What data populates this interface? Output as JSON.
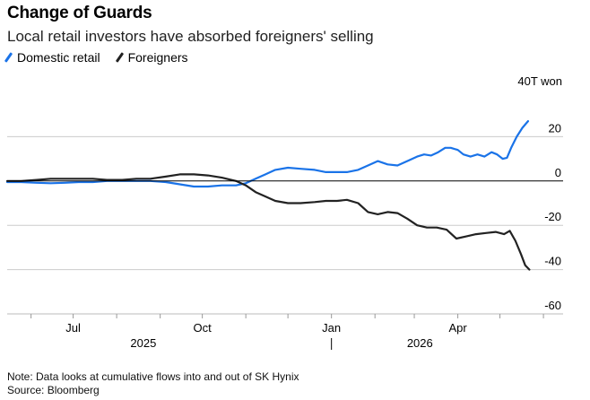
{
  "title": "Change of Guards",
  "subtitle": "Local retail investors have absorbed foreigners' selling",
  "unit": "40T won",
  "note": "Note: Data looks at cumulative flows into and out of SK Hynix",
  "source": "Source: Bloomberg",
  "colors": {
    "domestic": "#1a73e8",
    "foreigners": "#222222",
    "grid": "#cccccc",
    "axis": "#000000"
  },
  "chart_data": {
    "type": "line",
    "ylim": [
      -60,
      40
    ],
    "yticks": [
      {
        "value": 20,
        "label": "20"
      },
      {
        "value": 0,
        "label": "0"
      },
      {
        "value": -20,
        "label": "-20"
      },
      {
        "value": -40,
        "label": "-40"
      },
      {
        "value": -60,
        "label": "-60"
      }
    ],
    "xlim": [
      "2025-05-15",
      "2026-06-15"
    ],
    "month_ticks": [
      "2025-06-01",
      "2025-07-01",
      "2025-08-01",
      "2025-09-01",
      "2025-10-01",
      "2025-11-01",
      "2025-12-01",
      "2026-01-01",
      "2026-02-01",
      "2026-03-01",
      "2026-04-01",
      "2026-05-01",
      "2026-06-01"
    ],
    "xlabels": [
      {
        "date": "2025-07-01",
        "label": "Jul"
      },
      {
        "date": "2025-10-01",
        "label": "Oct"
      },
      {
        "date": "2026-01-01",
        "label": "Jan"
      },
      {
        "date": "2026-04-01",
        "label": "Apr"
      }
    ],
    "years": [
      {
        "date": "2025-08-20",
        "label": "2025"
      },
      {
        "date": "2026-03-05",
        "label": "2026"
      }
    ],
    "year_divider": "2026-01-01",
    "series": [
      {
        "name": "Domestic retail",
        "color": "#1a73e8",
        "points": [
          [
            "2025-05-15",
            -0.5
          ],
          [
            "2025-05-25",
            -0.5
          ],
          [
            "2025-06-05",
            -0.8
          ],
          [
            "2025-06-15",
            -1
          ],
          [
            "2025-06-25",
            -0.8
          ],
          [
            "2025-07-05",
            -0.5
          ],
          [
            "2025-07-15",
            -0.5
          ],
          [
            "2025-07-25",
            0
          ],
          [
            "2025-08-05",
            0
          ],
          [
            "2025-08-15",
            0
          ],
          [
            "2025-08-25",
            0
          ],
          [
            "2025-09-05",
            -0.5
          ],
          [
            "2025-09-15",
            -1.5
          ],
          [
            "2025-09-25",
            -2.5
          ],
          [
            "2025-10-05",
            -2.5
          ],
          [
            "2025-10-15",
            -2
          ],
          [
            "2025-10-25",
            -2
          ],
          [
            "2025-11-01",
            -1
          ],
          [
            "2025-11-08",
            1
          ],
          [
            "2025-11-15",
            3
          ],
          [
            "2025-11-22",
            5
          ],
          [
            "2025-12-01",
            6
          ],
          [
            "2025-12-10",
            5.5
          ],
          [
            "2025-12-20",
            5
          ],
          [
            "2025-12-28",
            4
          ],
          [
            "2026-01-05",
            4
          ],
          [
            "2026-01-12",
            4
          ],
          [
            "2026-01-20",
            5
          ],
          [
            "2026-01-27",
            7
          ],
          [
            "2026-02-03",
            9
          ],
          [
            "2026-02-10",
            7.5
          ],
          [
            "2026-02-17",
            7
          ],
          [
            "2026-02-24",
            9
          ],
          [
            "2026-03-03",
            11
          ],
          [
            "2026-03-08",
            12
          ],
          [
            "2026-03-13",
            11.5
          ],
          [
            "2026-03-18",
            13
          ],
          [
            "2026-03-23",
            15
          ],
          [
            "2026-03-27",
            15
          ],
          [
            "2026-04-01",
            14
          ],
          [
            "2026-04-05",
            12
          ],
          [
            "2026-04-10",
            11
          ],
          [
            "2026-04-15",
            12
          ],
          [
            "2026-04-20",
            11
          ],
          [
            "2026-04-25",
            13
          ],
          [
            "2026-04-29",
            12
          ],
          [
            "2026-05-03",
            10
          ],
          [
            "2026-05-06",
            10.5
          ],
          [
            "2026-05-09",
            15
          ],
          [
            "2026-05-13",
            20
          ],
          [
            "2026-05-17",
            24
          ],
          [
            "2026-05-21",
            27
          ]
        ]
      },
      {
        "name": "Foreigners",
        "color": "#222222",
        "points": [
          [
            "2025-05-15",
            0
          ],
          [
            "2025-05-25",
            0
          ],
          [
            "2025-06-05",
            0.5
          ],
          [
            "2025-06-15",
            1
          ],
          [
            "2025-06-25",
            1
          ],
          [
            "2025-07-05",
            1
          ],
          [
            "2025-07-15",
            1
          ],
          [
            "2025-07-25",
            0.5
          ],
          [
            "2025-08-05",
            0.5
          ],
          [
            "2025-08-15",
            1
          ],
          [
            "2025-08-25",
            1
          ],
          [
            "2025-09-05",
            2
          ],
          [
            "2025-09-15",
            3
          ],
          [
            "2025-09-25",
            3
          ],
          [
            "2025-10-05",
            2.5
          ],
          [
            "2025-10-15",
            1.5
          ],
          [
            "2025-10-25",
            0
          ],
          [
            "2025-11-01",
            -2
          ],
          [
            "2025-11-08",
            -5
          ],
          [
            "2025-11-15",
            -7
          ],
          [
            "2025-11-22",
            -9
          ],
          [
            "2025-12-01",
            -10
          ],
          [
            "2025-12-10",
            -10
          ],
          [
            "2025-12-20",
            -9.5
          ],
          [
            "2025-12-28",
            -9
          ],
          [
            "2026-01-05",
            -9
          ],
          [
            "2026-01-12",
            -8.5
          ],
          [
            "2026-01-20",
            -10
          ],
          [
            "2026-01-27",
            -14
          ],
          [
            "2026-02-03",
            -15
          ],
          [
            "2026-02-10",
            -14
          ],
          [
            "2026-02-17",
            -14.5
          ],
          [
            "2026-02-24",
            -17
          ],
          [
            "2026-03-03",
            -20
          ],
          [
            "2026-03-10",
            -21
          ],
          [
            "2026-03-17",
            -21
          ],
          [
            "2026-03-24",
            -22
          ],
          [
            "2026-03-31",
            -26
          ],
          [
            "2026-04-07",
            -25
          ],
          [
            "2026-04-14",
            -24
          ],
          [
            "2026-04-21",
            -23.5
          ],
          [
            "2026-04-28",
            -23
          ],
          [
            "2026-05-04",
            -24
          ],
          [
            "2026-05-08",
            -22.5
          ],
          [
            "2026-05-12",
            -27
          ],
          [
            "2026-05-16",
            -33
          ],
          [
            "2026-05-19",
            -38
          ],
          [
            "2026-05-22",
            -40
          ]
        ]
      }
    ]
  }
}
